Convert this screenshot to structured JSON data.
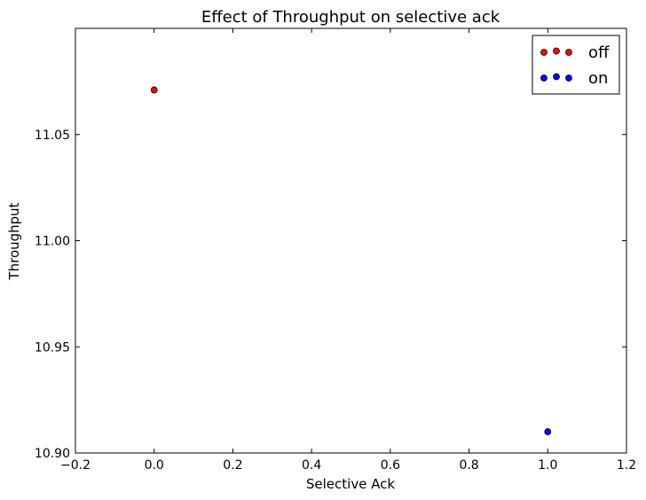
{
  "chart_data": {
    "type": "scatter",
    "title": "Effect of Throughput on selective ack",
    "xlabel": "Selective Ack",
    "ylabel": "Throughput",
    "xlim": [
      -0.2,
      1.2
    ],
    "ylim": [
      10.9,
      11.1
    ],
    "x_ticks": [
      "−0.2",
      "0.0",
      "0.2",
      "0.4",
      "0.6",
      "0.8",
      "1.0",
      "1.2"
    ],
    "y_ticks": [
      "10.90",
      "10.95",
      "11.00",
      "11.05"
    ],
    "y_tick_values": [
      10.9,
      10.95,
      11.0,
      11.05
    ],
    "x_tick_values": [
      -0.2,
      0.0,
      0.2,
      0.4,
      0.6,
      0.8,
      1.0,
      1.2
    ],
    "grid": false,
    "legend_position": "top-right",
    "series": [
      {
        "name": "off",
        "color": "#ff0000",
        "points": [
          {
            "x": 0.0,
            "y": 11.071
          }
        ]
      },
      {
        "name": "on",
        "color": "#0000ff",
        "points": [
          {
            "x": 1.0,
            "y": 10.91
          }
        ]
      }
    ]
  }
}
